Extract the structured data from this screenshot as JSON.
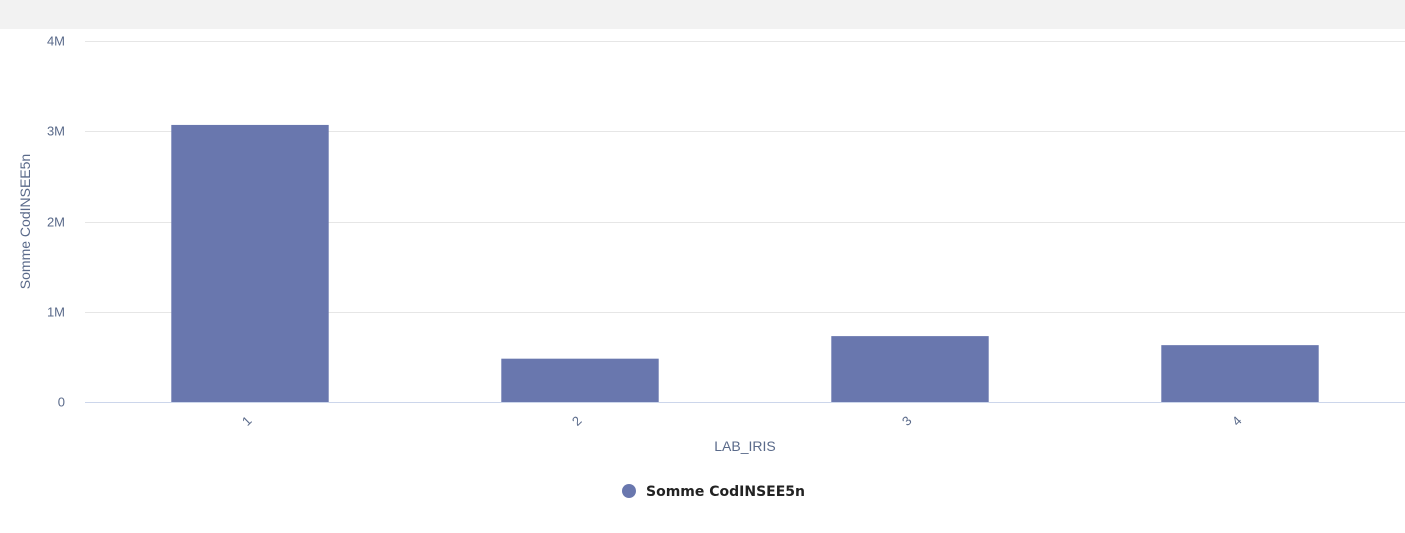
{
  "chart_data": {
    "type": "bar",
    "categories": [
      "1",
      "2",
      "3",
      "4"
    ],
    "series": [
      {
        "name": "Somme CodINSEE5n",
        "values": [
          3070000,
          480000,
          730000,
          630000
        ],
        "color": "#6977ae"
      }
    ],
    "xlabel": "LAB_IRIS",
    "ylabel": "Somme CodINSEE5n",
    "ylim": [
      0,
      4000000
    ],
    "yticks": [
      0,
      1000000,
      2000000,
      3000000,
      4000000
    ],
    "ytick_labels": [
      "0",
      "1M",
      "2M",
      "3M",
      "4M"
    ],
    "grid": true,
    "legend_position": "bottom-center"
  },
  "colors": {
    "bar": "#6977ae",
    "grid": "#e6e6e6",
    "axis_line": "#ccd6eb",
    "tick_text": "#5a6a8a",
    "top_bar": "#f2f2f2"
  }
}
